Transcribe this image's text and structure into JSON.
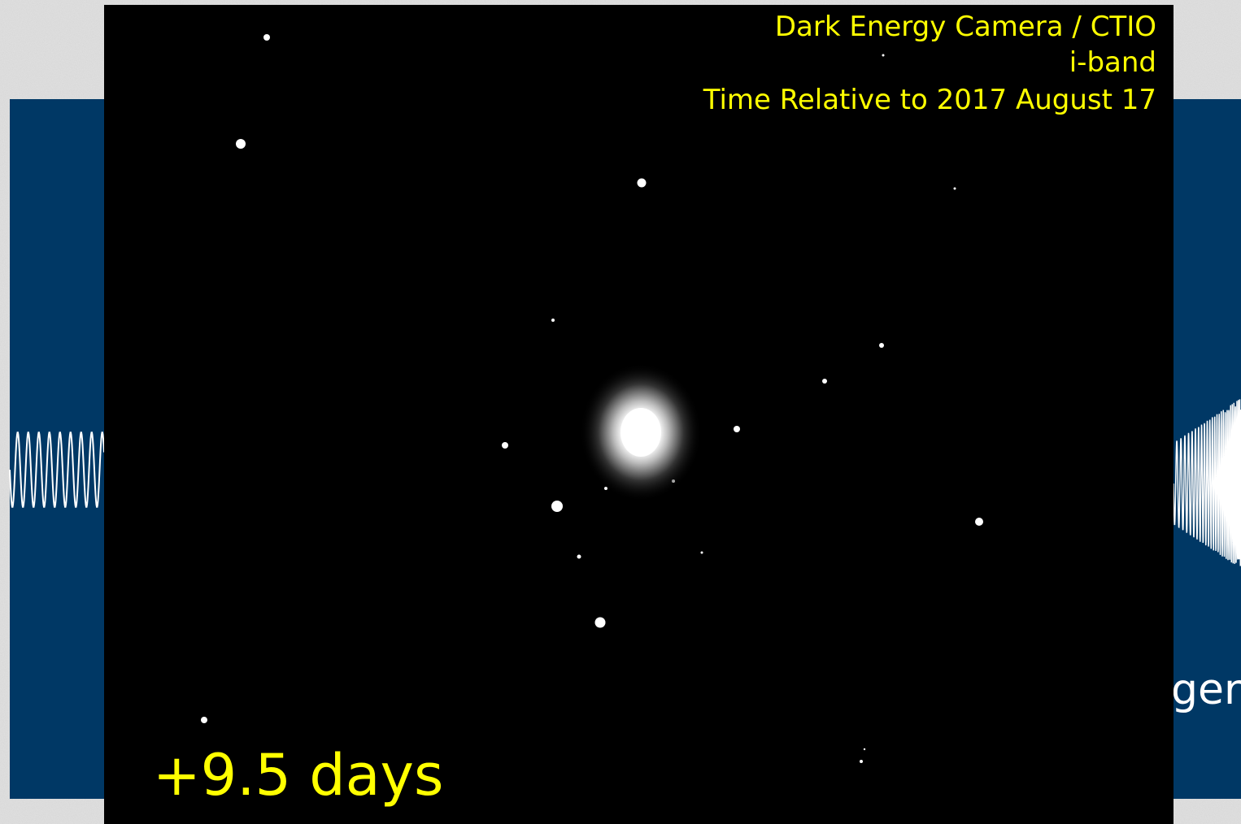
{
  "overlay": {
    "camera": "Dark Energy Camera / CTIO",
    "band": "i-band",
    "time_reference": "Time Relative to 2017 August 17",
    "elapsed": "+9.5 days"
  },
  "slide": {
    "fragment": "ger"
  }
}
